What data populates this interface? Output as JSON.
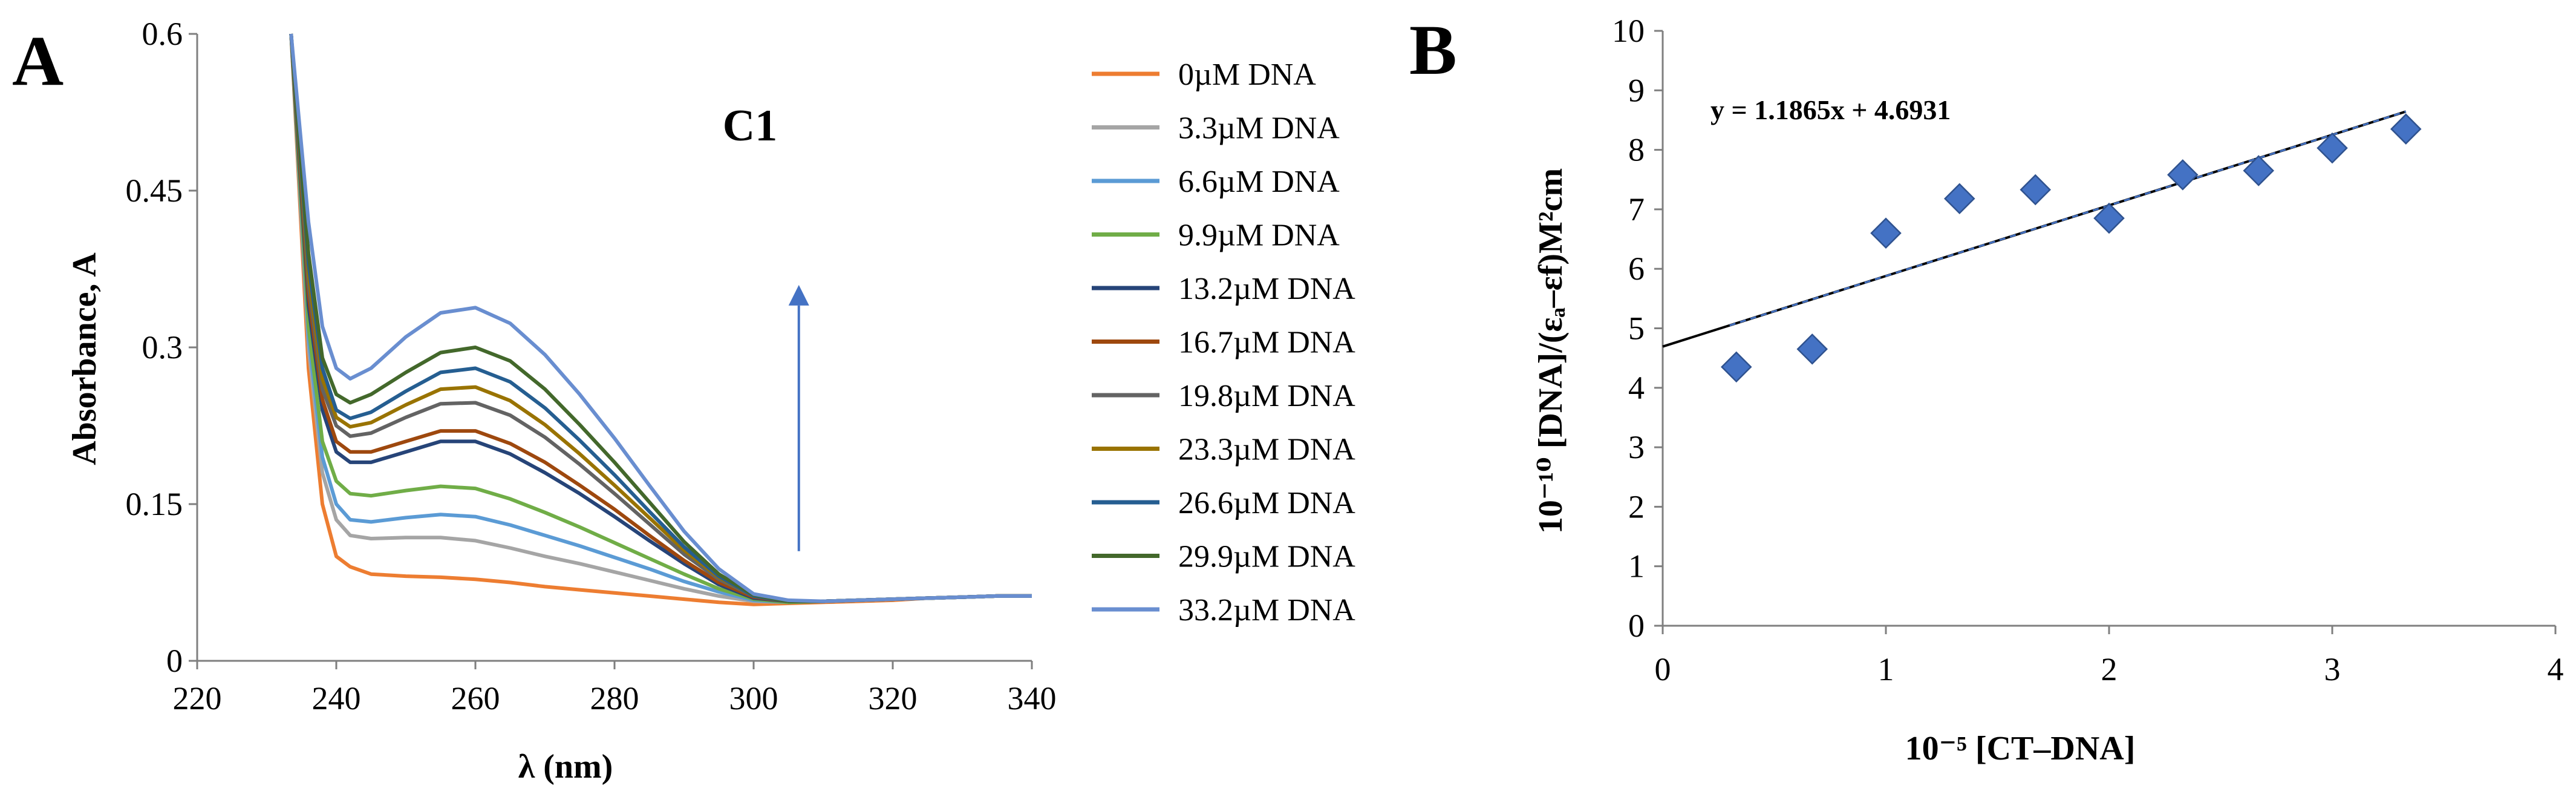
{
  "figure": {
    "panel_a_label": "A",
    "panel_b_label": "B"
  },
  "chart_data": [
    {
      "type": "line",
      "panel": "A",
      "title": "C1",
      "xlabel": "λ (nm)",
      "ylabel": "Absorbance, A",
      "xlim": [
        220,
        340
      ],
      "ylim": [
        0,
        0.6
      ],
      "xticks": [
        220,
        240,
        260,
        280,
        300,
        320,
        340
      ],
      "xtick_labels": [
        "220",
        "240",
        "260",
        "280",
        "300",
        "320",
        "340"
      ],
      "yticks": [
        0,
        0.15,
        0.3,
        0.45,
        0.6
      ],
      "ytick_labels": [
        "0",
        "0.15",
        "0.3",
        "0.45",
        "0.6"
      ],
      "annotation": "upward arrow near 306 nm indicating hyperchromism with increasing DNA",
      "series": [
        {
          "name": "0µM DNA",
          "color": "#ED7D31",
          "x": [
            233.5,
            236,
            238,
            240,
            242,
            245,
            250,
            255,
            260,
            265,
            270,
            275,
            280,
            285,
            290,
            295,
            300,
            305,
            310,
            315,
            320,
            325,
            330,
            335,
            340
          ],
          "values": [
            0.6,
            0.28,
            0.15,
            0.1,
            0.09,
            0.083,
            0.081,
            0.08,
            0.078,
            0.075,
            0.071,
            0.068,
            0.065,
            0.062,
            0.059,
            0.056,
            0.054,
            0.055,
            0.056,
            0.057,
            0.058,
            0.06,
            0.061,
            0.062,
            0.062
          ]
        },
        {
          "name": "3.3µM DNA",
          "color": "#A5A5A5",
          "x": [
            233.5,
            236,
            238,
            240,
            242,
            245,
            250,
            255,
            260,
            265,
            270,
            275,
            280,
            285,
            290,
            295,
            300,
            305,
            310,
            315,
            320,
            325,
            330,
            335,
            340
          ],
          "values": [
            0.6,
            0.3,
            0.18,
            0.135,
            0.12,
            0.117,
            0.118,
            0.118,
            0.115,
            0.108,
            0.1,
            0.093,
            0.085,
            0.077,
            0.069,
            0.062,
            0.057,
            0.056,
            0.057,
            0.058,
            0.059,
            0.06,
            0.061,
            0.062,
            0.062
          ]
        },
        {
          "name": "6.6µM DNA",
          "color": "#5B9BD5",
          "x": [
            233.5,
            236,
            238,
            240,
            242,
            245,
            250,
            255,
            260,
            265,
            270,
            275,
            280,
            285,
            290,
            295,
            300,
            305,
            310,
            315,
            320,
            325,
            330,
            335,
            340
          ],
          "values": [
            0.6,
            0.31,
            0.195,
            0.15,
            0.135,
            0.133,
            0.137,
            0.14,
            0.138,
            0.13,
            0.12,
            0.11,
            0.099,
            0.088,
            0.076,
            0.066,
            0.058,
            0.056,
            0.057,
            0.058,
            0.059,
            0.06,
            0.061,
            0.062,
            0.062
          ]
        },
        {
          "name": "9.9µM DNA",
          "color": "#70AD47",
          "x": [
            233.5,
            236,
            238,
            240,
            242,
            245,
            250,
            255,
            260,
            265,
            270,
            275,
            280,
            285,
            290,
            295,
            300,
            305,
            310,
            315,
            320,
            325,
            330,
            335,
            340
          ],
          "values": [
            0.6,
            0.32,
            0.21,
            0.172,
            0.16,
            0.158,
            0.163,
            0.167,
            0.165,
            0.155,
            0.142,
            0.128,
            0.113,
            0.098,
            0.083,
            0.069,
            0.059,
            0.056,
            0.057,
            0.058,
            0.059,
            0.06,
            0.061,
            0.062,
            0.062
          ]
        },
        {
          "name": "13.2µM DNA",
          "color": "#264478",
          "x": [
            233.5,
            236,
            238,
            240,
            242,
            245,
            250,
            255,
            260,
            265,
            270,
            275,
            280,
            285,
            290,
            295,
            300,
            305,
            310,
            315,
            320,
            325,
            330,
            335,
            340
          ],
          "values": [
            0.6,
            0.34,
            0.24,
            0.2,
            0.19,
            0.19,
            0.2,
            0.21,
            0.21,
            0.198,
            0.18,
            0.16,
            0.138,
            0.115,
            0.093,
            0.073,
            0.06,
            0.057,
            0.057,
            0.058,
            0.059,
            0.06,
            0.061,
            0.062,
            0.062
          ]
        },
        {
          "name": "16.7µM DNA",
          "color": "#9E480E",
          "x": [
            233.5,
            236,
            238,
            240,
            242,
            245,
            250,
            255,
            260,
            265,
            270,
            275,
            280,
            285,
            290,
            295,
            300,
            305,
            310,
            315,
            320,
            325,
            330,
            335,
            340
          ],
          "values": [
            0.6,
            0.35,
            0.25,
            0.21,
            0.2,
            0.2,
            0.21,
            0.22,
            0.22,
            0.208,
            0.19,
            0.168,
            0.145,
            0.12,
            0.096,
            0.075,
            0.061,
            0.057,
            0.057,
            0.058,
            0.059,
            0.06,
            0.061,
            0.062,
            0.062
          ]
        },
        {
          "name": "19.8µM DNA",
          "color": "#636363",
          "x": [
            233.5,
            236,
            238,
            240,
            242,
            245,
            250,
            255,
            260,
            265,
            270,
            275,
            280,
            285,
            290,
            295,
            300,
            305,
            310,
            315,
            320,
            325,
            330,
            335,
            340
          ],
          "values": [
            0.6,
            0.36,
            0.26,
            0.225,
            0.215,
            0.218,
            0.233,
            0.246,
            0.247,
            0.235,
            0.214,
            0.188,
            0.16,
            0.131,
            0.102,
            0.078,
            0.062,
            0.057,
            0.057,
            0.058,
            0.059,
            0.06,
            0.061,
            0.062,
            0.062
          ]
        },
        {
          "name": "23.3µM DNA",
          "color": "#997300",
          "x": [
            233.5,
            236,
            238,
            240,
            242,
            245,
            250,
            255,
            260,
            265,
            270,
            275,
            280,
            285,
            290,
            295,
            300,
            305,
            310,
            315,
            320,
            325,
            330,
            335,
            340
          ],
          "values": [
            0.6,
            0.37,
            0.27,
            0.233,
            0.224,
            0.228,
            0.245,
            0.26,
            0.262,
            0.249,
            0.226,
            0.198,
            0.168,
            0.137,
            0.106,
            0.08,
            0.062,
            0.057,
            0.057,
            0.058,
            0.059,
            0.06,
            0.061,
            0.062,
            0.062
          ]
        },
        {
          "name": "26.6µM DNA",
          "color": "#255E91",
          "x": [
            233.5,
            236,
            238,
            240,
            242,
            245,
            250,
            255,
            260,
            265,
            270,
            275,
            280,
            285,
            290,
            295,
            300,
            305,
            310,
            315,
            320,
            325,
            330,
            335,
            340
          ],
          "values": [
            0.6,
            0.38,
            0.28,
            0.24,
            0.232,
            0.238,
            0.258,
            0.276,
            0.28,
            0.267,
            0.242,
            0.211,
            0.178,
            0.143,
            0.109,
            0.081,
            0.062,
            0.057,
            0.057,
            0.058,
            0.059,
            0.06,
            0.061,
            0.062,
            0.062
          ]
        },
        {
          "name": "29.9µM DNA",
          "color": "#43682B",
          "x": [
            233.5,
            236,
            238,
            240,
            242,
            245,
            250,
            255,
            260,
            265,
            270,
            275,
            280,
            285,
            290,
            295,
            300,
            305,
            310,
            315,
            320,
            325,
            330,
            335,
            340
          ],
          "values": [
            0.6,
            0.39,
            0.29,
            0.255,
            0.247,
            0.255,
            0.276,
            0.295,
            0.3,
            0.287,
            0.26,
            0.226,
            0.19,
            0.152,
            0.114,
            0.083,
            0.063,
            0.057,
            0.057,
            0.058,
            0.059,
            0.06,
            0.061,
            0.062,
            0.062
          ]
        },
        {
          "name": "33.2µM DNA",
          "color": "#698ED0",
          "x": [
            233.5,
            236,
            238,
            240,
            242,
            245,
            250,
            255,
            260,
            265,
            270,
            275,
            280,
            285,
            290,
            295,
            300,
            305,
            310,
            315,
            320,
            325,
            330,
            335,
            340
          ],
          "values": [
            0.6,
            0.42,
            0.32,
            0.28,
            0.27,
            0.28,
            0.31,
            0.333,
            0.338,
            0.323,
            0.293,
            0.255,
            0.213,
            0.168,
            0.124,
            0.088,
            0.064,
            0.058,
            0.057,
            0.058,
            0.059,
            0.06,
            0.061,
            0.062,
            0.062
          ]
        }
      ],
      "legend_position": "right"
    },
    {
      "type": "scatter",
      "panel": "B",
      "xlabel": "10⁻⁵ [CT–DNA]",
      "ylabel": "10⁻¹⁰ [DNA]/(εₐ–εf)M²cm",
      "xlim": [
        0,
        4
      ],
      "ylim": [
        0,
        10
      ],
      "xticks": [
        0,
        1,
        2,
        3,
        4
      ],
      "xtick_labels": [
        "0",
        "1",
        "2",
        "3",
        "4"
      ],
      "yticks": [
        0,
        1,
        2,
        3,
        4,
        5,
        6,
        7,
        8,
        9,
        10
      ],
      "ytick_labels": [
        "0",
        "1",
        "2",
        "3",
        "4",
        "5",
        "6",
        "7",
        "8",
        "9",
        "10"
      ],
      "marker": "diamond",
      "marker_color": "#4472C4",
      "points": {
        "x": [
          0.33,
          0.67,
          1.0,
          1.33,
          1.67,
          2.0,
          2.33,
          2.67,
          3.0,
          3.33
        ],
        "y": [
          4.35,
          4.65,
          6.6,
          7.18,
          7.33,
          6.85,
          7.58,
          7.65,
          8.03,
          8.35
        ]
      },
      "trendline": {
        "equation": "y = 1.1865x + 4.6931",
        "slope": 1.1865,
        "intercept": 4.6931,
        "x_range": [
          0,
          3.33
        ]
      }
    }
  ]
}
